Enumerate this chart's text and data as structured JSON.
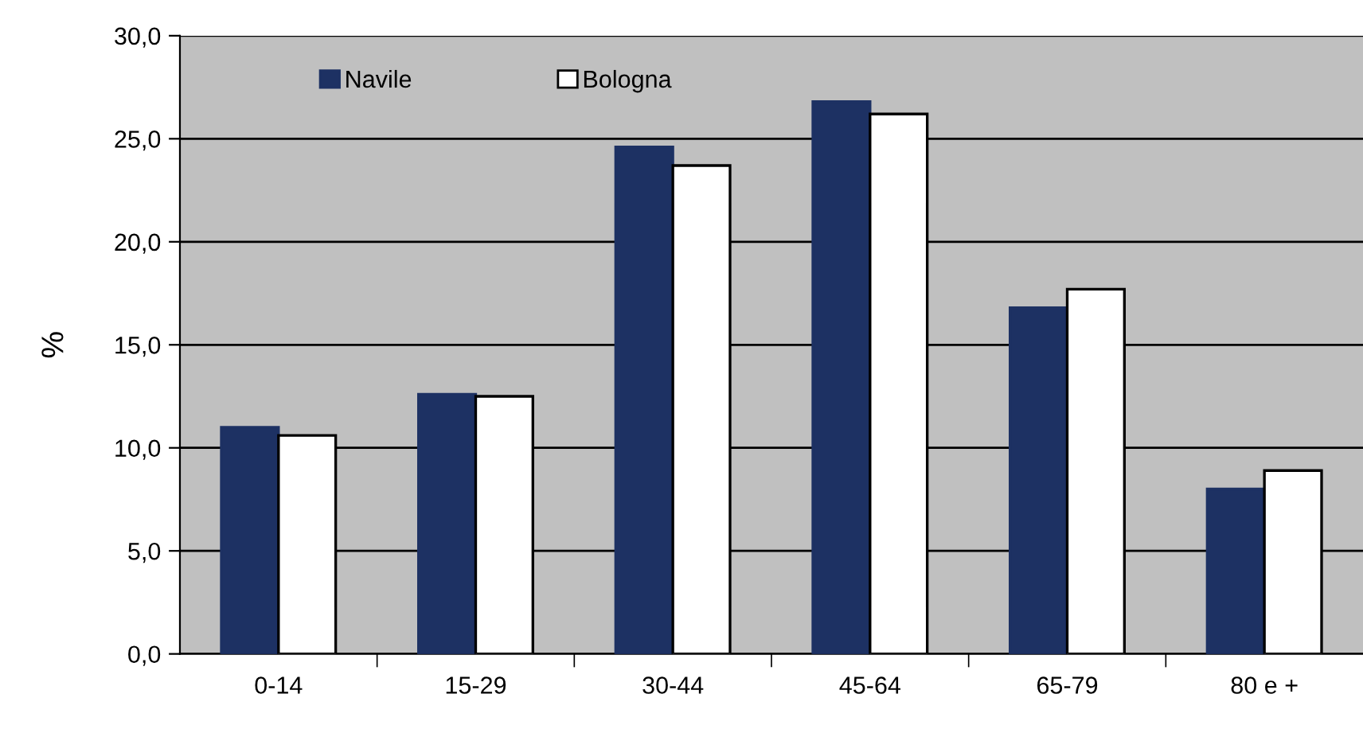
{
  "chart_data": {
    "type": "bar",
    "ylabel": "%",
    "categories": [
      "0-14",
      "15-29",
      "30-44",
      "45-64",
      "65-79",
      "80 e +"
    ],
    "series": [
      {
        "name": "Navile",
        "color": "#1d3163",
        "values": [
          11.0,
          12.6,
          24.6,
          26.8,
          16.8,
          8.0
        ]
      },
      {
        "name": "Bologna",
        "color": "#ffffff",
        "values": [
          10.6,
          12.5,
          23.7,
          26.2,
          17.7,
          8.9
        ]
      }
    ],
    "ylim": [
      0,
      30
    ],
    "yticks": [
      {
        "value": 0,
        "label": "0,0"
      },
      {
        "value": 5,
        "label": "5,0"
      },
      {
        "value": 10,
        "label": "10,0"
      },
      {
        "value": 15,
        "label": "15,0"
      },
      {
        "value": 20,
        "label": "20,0"
      },
      {
        "value": 25,
        "label": "25,0"
      },
      {
        "value": 30,
        "label": "30,0"
      }
    ],
    "grid": "y",
    "legend": "top left"
  }
}
